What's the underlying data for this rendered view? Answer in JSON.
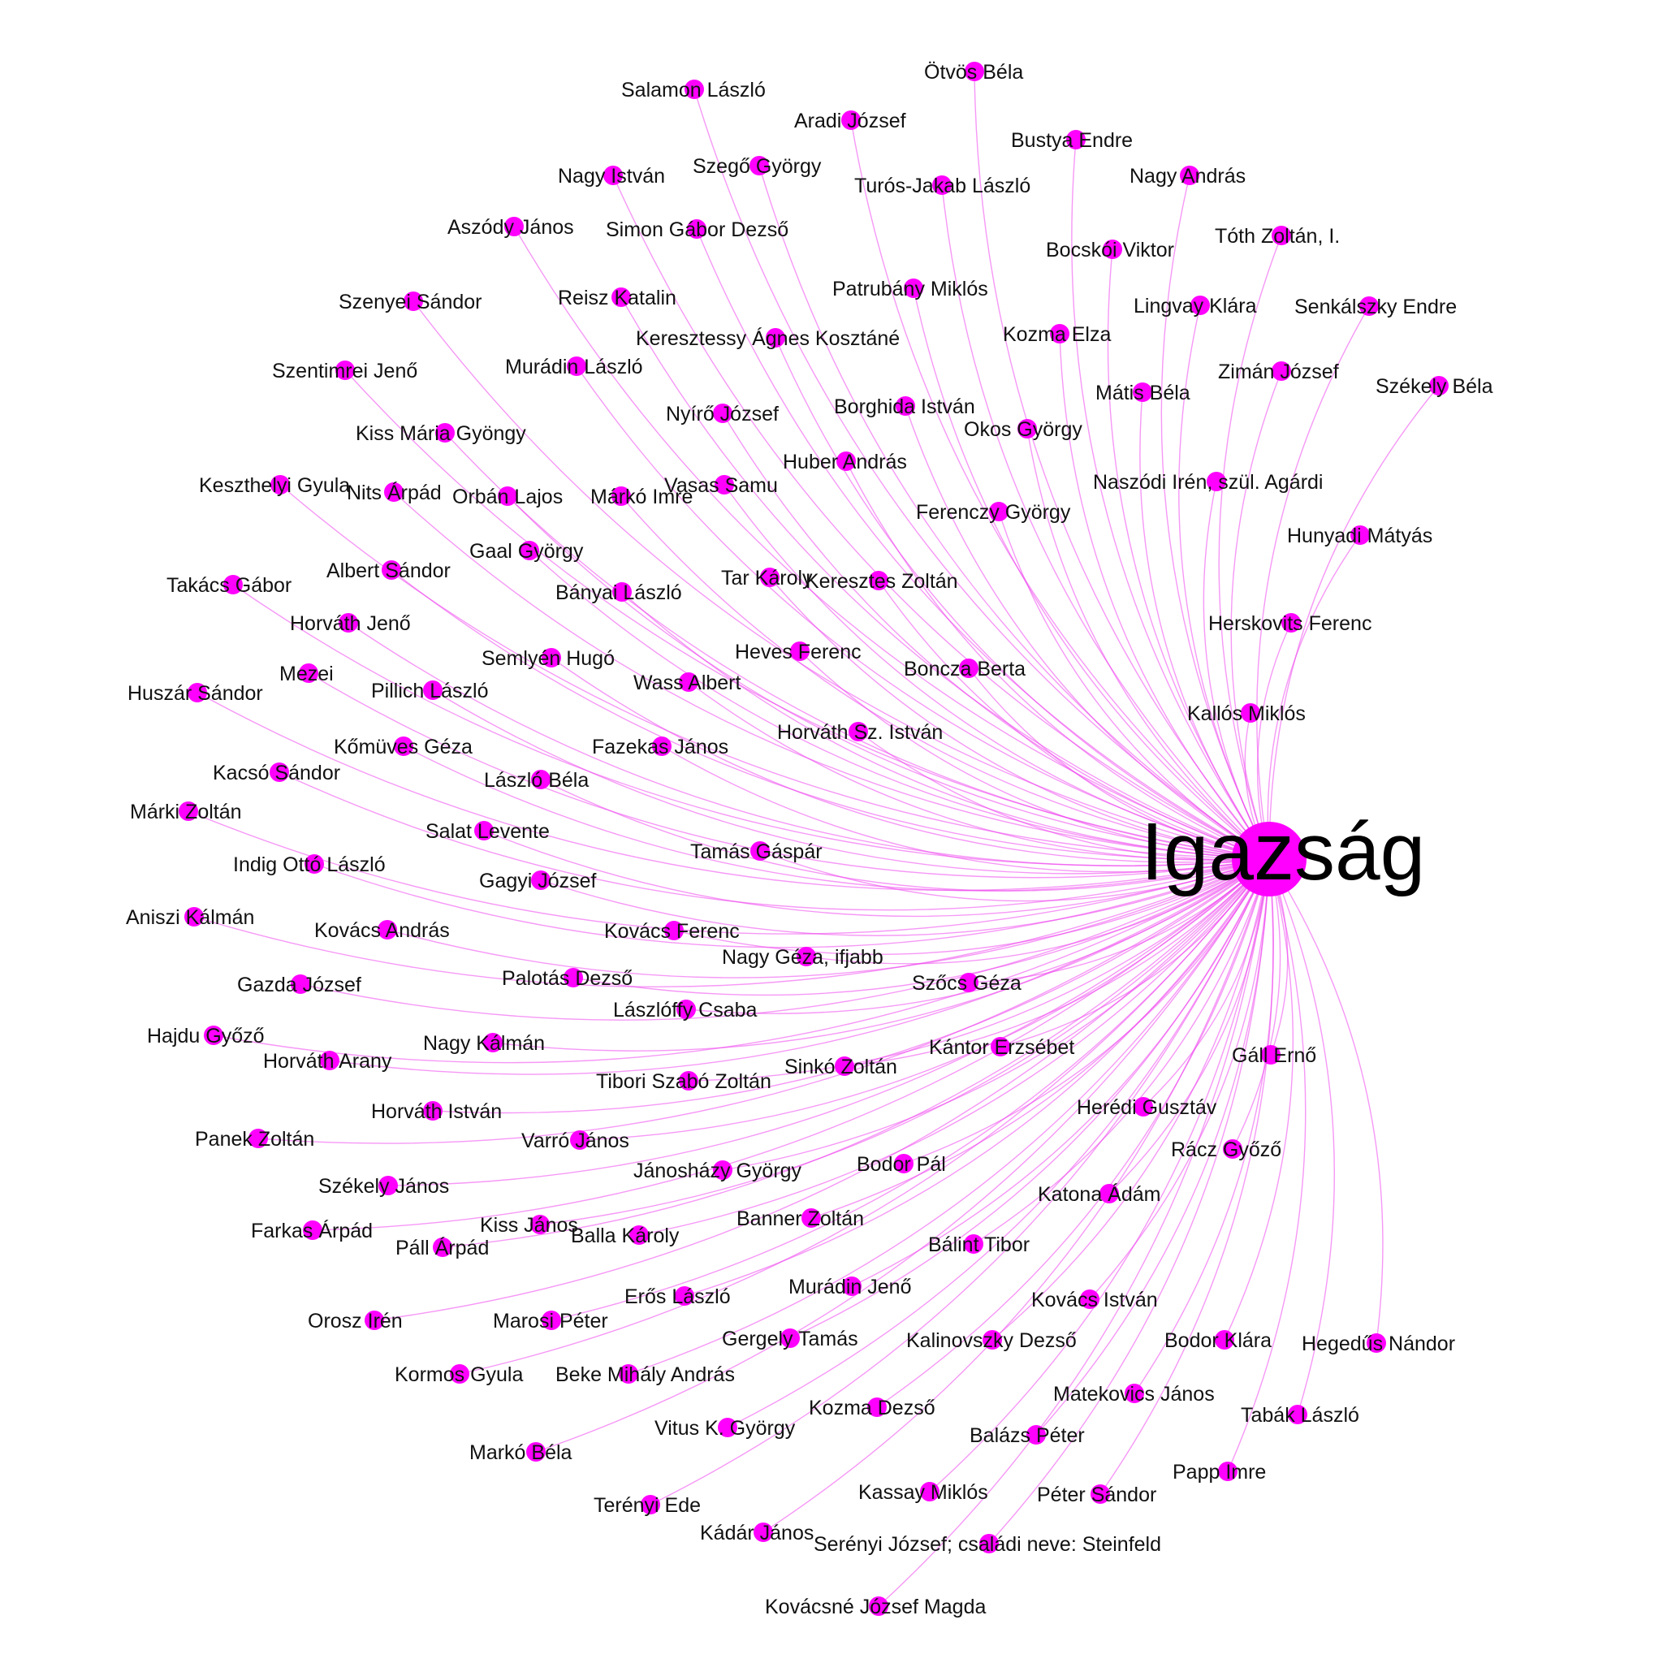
{
  "colors": {
    "node": "#ff00ff",
    "edge": "#ee44ee"
  },
  "hub": {
    "label": "Igazság"
  },
  "nodes": [
    "Salamon László",
    "Ötvös Béla",
    "Aradi József",
    "Bustya Endre",
    "Nagy István",
    "Szegő György",
    "Turós-Jakab László",
    "Nagy András",
    "Aszódy János",
    "Simon Gábor Dezső",
    "Bocskói Viktor",
    "Tóth Zoltán, I.",
    "Szenyei Sándor",
    "Reisz Katalin",
    "Patrubány Miklós",
    "Lingvay Klára",
    "Senkálszky Endre",
    "Keresztessy Ágnes Kosztáné",
    "Kozma Elza",
    "Szentimrei Jenő",
    "Murádin László",
    "Zimán József",
    "Székely Béla",
    "Mátis Béla",
    "Nyírő József",
    "Borghida István",
    "Kiss Mária Gyöngy",
    "Okos György",
    "Huber András",
    "Keszthelyi Gyula",
    "Nits Árpád",
    "Orbán Lajos",
    "Márkó Imre",
    "Vasas Samu",
    "Naszódi Irén, szül. Agárdi",
    "Ferenczy György",
    "Hunyadi Mátyás",
    "Gaal György",
    "Takács Gábor",
    "Albert Sándor",
    "Tar Károly",
    "Keresztes Zoltán",
    "Bányai László",
    "Horváth Jenő",
    "Herskovits Ferenc",
    "Semlyén Hugó",
    "Heves Ferenc",
    "Boncza Berta",
    "Huszár Sándor",
    "Mezei",
    "Pillich László",
    "Wass Albert",
    "Kallós Miklós",
    "Kőmüves Géza",
    "Fazekas János",
    "Horváth Sz. István",
    "Kacsó Sándor",
    "László Béla",
    "Márki Zoltán",
    "Salat Levente",
    "Tamás Gáspár",
    "Indig Ottó László",
    "Gagyi József",
    "Aniszi Kálmán",
    "Kovács András",
    "Kovács Ferenc",
    "Nagy Géza, ifjabb",
    "Palotás Dezső",
    "Gazda József",
    "Szőcs Géza",
    "Lászlóffy Csaba",
    "Hajdu Győző",
    "Nagy Kálmán",
    "Horváth Arany",
    "Kántor Erzsébet",
    "Sinkó Zoltán",
    "Gáll Ernő",
    "Tibori Szabó Zoltán",
    "Horváth István",
    "Herédi Gusztáv",
    "Panek Zoltán",
    "Varró János",
    "Rácz Győző",
    "Bodor Pál",
    "Jánosházy György",
    "Székely János",
    "Katona Ádám",
    "Kiss János",
    "Banner Zoltán",
    "Farkas Árpád",
    "Balla Károly",
    "Bálint Tibor",
    "Páll Árpád",
    "Erős László",
    "Murádin Jenő",
    "Kovács István",
    "Orosz Irén",
    "Marosi Péter",
    "Gergely Tamás",
    "Kalinovszky Dezső",
    "Bodor Klára",
    "Hegedűs Nándor",
    "Kormos Gyula",
    "Beke Mihály András",
    "Matekovics János",
    "Kozma Dezső",
    "Tabák László",
    "Vitus K. György",
    "Balázs Péter",
    "Markó Béla",
    "Papp Imre",
    "Kassay Miklós",
    "Péter Sándor",
    "Terényi Ede",
    "Kádár János",
    "Serényi József; családi neve: Steinfeld",
    "Kovácsné József Magda"
  ]
}
